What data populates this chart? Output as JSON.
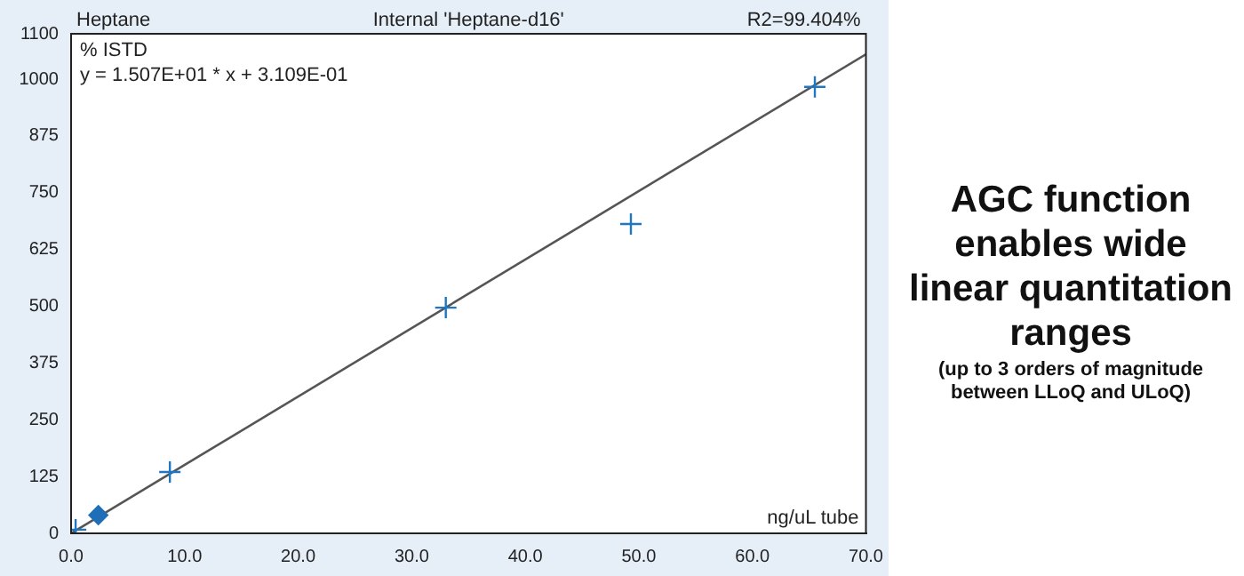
{
  "chart_data": {
    "type": "scatter",
    "title": "Heptane",
    "subtitle": "Internal 'Heptane-d16'",
    "xlabel": "ng/uL tube",
    "annotations": [
      "R2=99.404%",
      "% ISTD",
      "y = 1.507E+01 * x + 3.109E-01",
      "AGC function enables wide linear quantitation ranges",
      "(up to 3 orders of magnitude between LLoQ and ULoQ)"
    ],
    "series": [
      {
        "color": "#1f77c4",
        "marker": "cross",
        "x": [
          0.4,
          8.7,
          33,
          49.3,
          65.5
        ],
        "values": [
          8,
          135,
          497,
          681,
          983
        ]
      },
      {
        "color": "#1f6fb8",
        "marker": "diamond",
        "x": [
          2.4
        ],
        "values": [
          40
        ]
      },
      {
        "type": "line",
        "color": "#555555",
        "marker": "none",
        "x": [
          0,
          70
        ],
        "values": [
          0,
          1055
        ]
      }
    ],
    "xlim": [
      0,
      70
    ],
    "xticks": [
      {
        "value": 0,
        "label": "0.0"
      },
      {
        "value": 10,
        "label": "10.0"
      },
      {
        "value": 20,
        "label": "20.0"
      },
      {
        "value": 30,
        "label": "30.0"
      },
      {
        "value": 40,
        "label": "40.0"
      },
      {
        "value": 50,
        "label": "50.0"
      },
      {
        "value": 60,
        "label": "60.0"
      },
      {
        "value": 70,
        "label": "70.0"
      }
    ],
    "ylim": [
      0,
      1100
    ],
    "yticks": [
      0,
      125,
      250,
      375,
      500,
      625,
      750,
      875,
      1000,
      1100
    ],
    "grid": false,
    "legend": false
  }
}
